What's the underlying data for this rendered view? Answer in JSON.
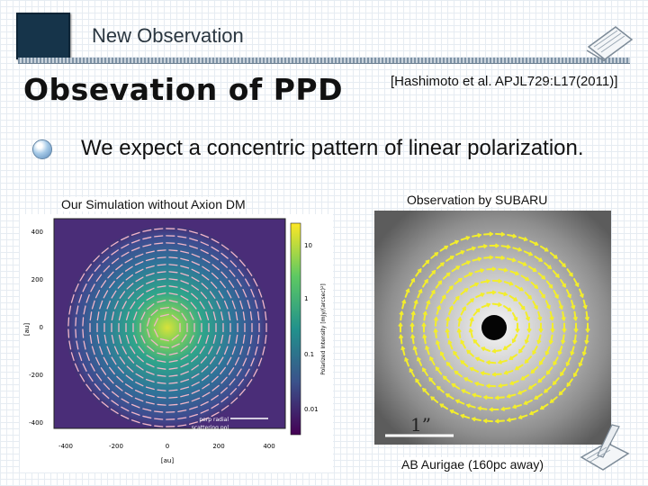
{
  "header": {
    "title": "New Observation"
  },
  "slide": {
    "title": "Obsevation of PPD",
    "reference": "[Hashimoto et al. APJL729:L17(2011)]",
    "bullet": "We expect a concentric pattern of linear polarization."
  },
  "left_panel": {
    "caption": "Our Simulation without Axion DM",
    "x_ticks": [
      "-400",
      "-200",
      "0",
      "200",
      "400"
    ],
    "y_ticks": [
      "400",
      "200",
      "0",
      "-200",
      "-400"
    ],
    "x_label": "[au]",
    "y_label": "[au]",
    "colorbar_ticks": [
      "10",
      "1",
      "0.1",
      "0.01"
    ],
    "colorbar_label": "Polarized Intensity [mJy/(arcsec)²]",
    "legend": [
      "perp radial",
      "scattering pol"
    ]
  },
  "right_panel": {
    "caption": "Observation by SUBARU",
    "scale_label": "1”",
    "object_caption": "AB Aurigae (160pc away)"
  }
}
